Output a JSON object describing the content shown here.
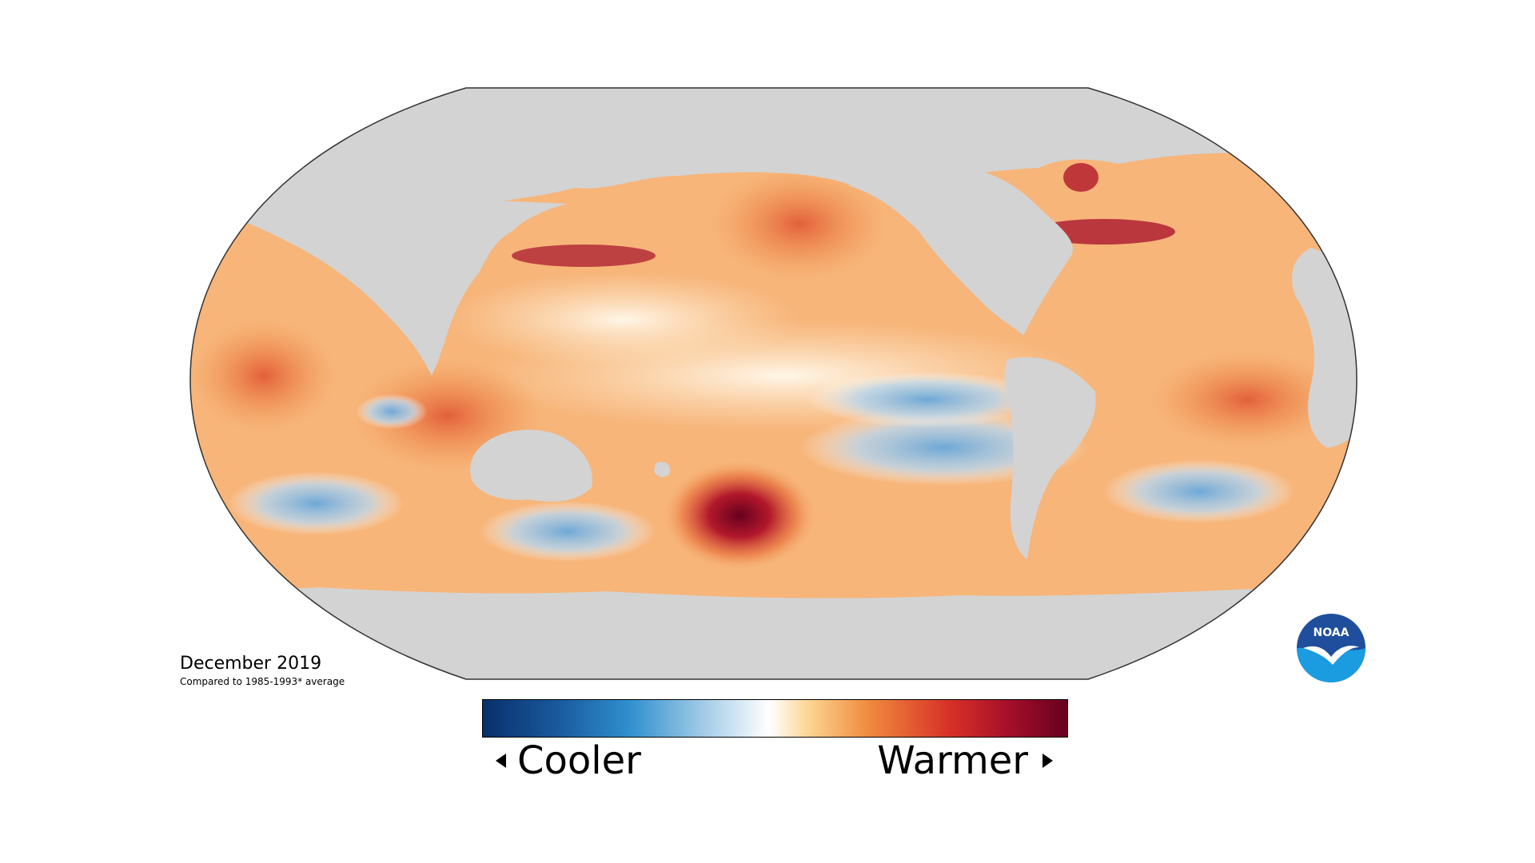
{
  "map": {
    "title": "December 2019",
    "baseline_note": "Compared to 1985-1993* average",
    "land_color": "#d3d3d3",
    "outline_color": "#333333"
  },
  "legend": {
    "cooler_label": "Cooler",
    "warmer_label": "Warmer",
    "colors": [
      "#08306b",
      "#2f8fce",
      "#ffffff",
      "#f08a3e",
      "#d73027",
      "#67001f"
    ]
  },
  "logo": {
    "text": "NOAA",
    "icon": "noaa-logo-icon"
  }
}
